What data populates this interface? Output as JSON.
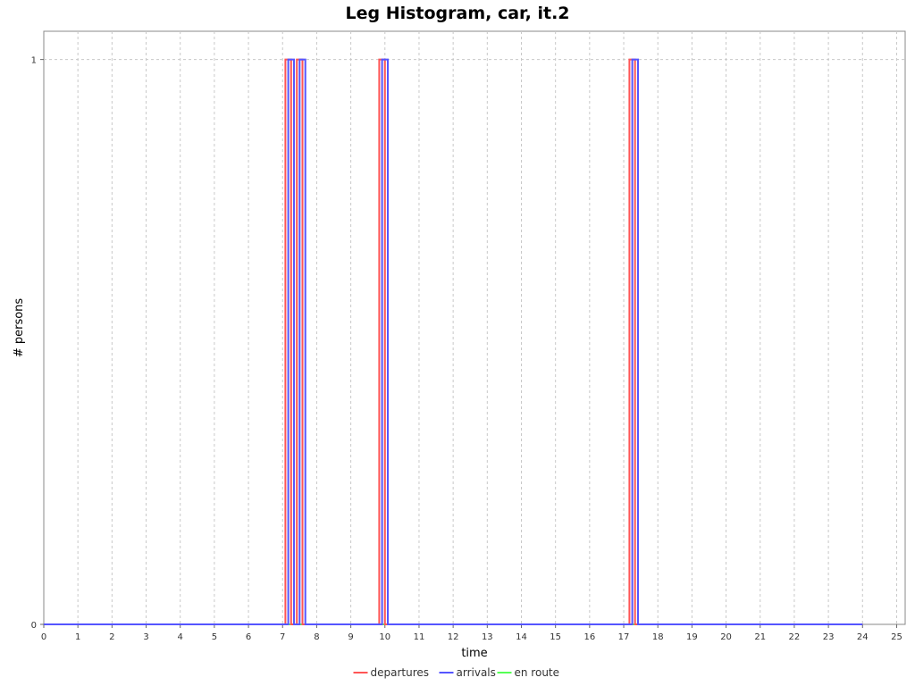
{
  "chart_data": {
    "type": "line",
    "title": "Leg Histogram, car, it.2",
    "xlabel": "time",
    "ylabel": "# persons",
    "xlim": [
      0,
      25.25
    ],
    "ylim": [
      0,
      1.05
    ],
    "x_ticks": [
      0,
      1,
      2,
      3,
      4,
      5,
      6,
      7,
      8,
      9,
      10,
      11,
      12,
      13,
      14,
      15,
      16,
      17,
      18,
      19,
      20,
      21,
      22,
      23,
      24,
      25
    ],
    "y_ticks": [
      0,
      1
    ],
    "grid": true,
    "legend_position": "bottom",
    "series": [
      {
        "name": "departures",
        "color": "#ff5555",
        "x": [
          0,
          7.083,
          7.083,
          7.25,
          7.25,
          7.417,
          7.417,
          7.583,
          7.583,
          9.833,
          9.833,
          10.0,
          10.0,
          17.167,
          17.167,
          17.333,
          17.333,
          24.0
        ],
        "y": [
          0,
          0,
          1,
          1,
          0,
          0,
          1,
          1,
          0,
          0,
          1,
          1,
          0,
          0,
          1,
          1,
          0,
          0
        ]
      },
      {
        "name": "arrivals",
        "color": "#5555ff",
        "x": [
          0,
          7.167,
          7.167,
          7.333,
          7.333,
          7.5,
          7.5,
          7.667,
          7.667,
          9.917,
          9.917,
          10.083,
          10.083,
          17.25,
          17.25,
          17.417,
          17.417,
          24.0
        ],
        "y": [
          0,
          0,
          1,
          1,
          0,
          0,
          1,
          1,
          0,
          0,
          1,
          1,
          0,
          0,
          1,
          1,
          0,
          0
        ]
      },
      {
        "name": "en route",
        "color": "#55ff55",
        "x": [
          0,
          24.0
        ],
        "y": [
          0,
          0
        ]
      }
    ]
  }
}
